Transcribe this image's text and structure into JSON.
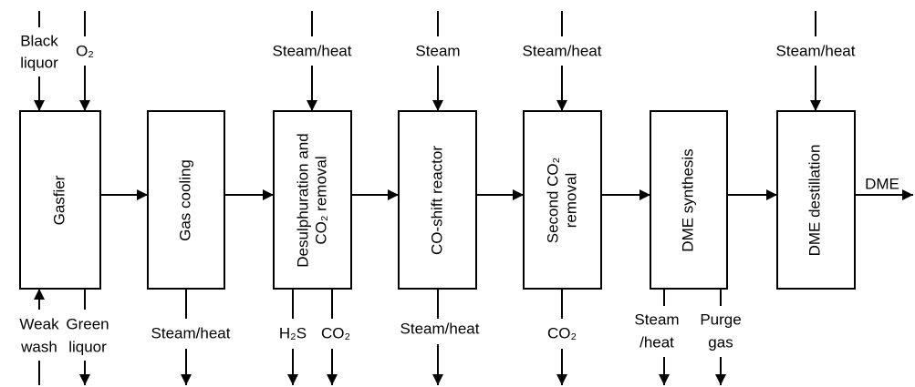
{
  "nodes": [
    {
      "label": [
        "Gasfier"
      ]
    },
    {
      "label": [
        "Gas cooling"
      ]
    },
    {
      "label": [
        "Desulphuration and",
        "CO₂ removal"
      ]
    },
    {
      "label": [
        "CO-shift reactor"
      ]
    },
    {
      "label": [
        "Second CO₂",
        "removal"
      ]
    },
    {
      "label": [
        "DME synthesis"
      ]
    },
    {
      "label": [
        "DME destillation"
      ]
    }
  ],
  "inputs": [
    {
      "label": [
        "Black",
        "liquor"
      ]
    },
    {
      "label": [
        "O₂"
      ]
    },
    {
      "label": [
        "Steam/heat"
      ]
    },
    {
      "label": [
        "Steam"
      ]
    },
    {
      "label": [
        "Steam/heat"
      ]
    },
    {
      "label": [
        "Steam/heat"
      ]
    },
    {
      "label": [
        "Weak",
        "wash"
      ]
    }
  ],
  "outputs": [
    {
      "label": [
        "Green",
        "liquor"
      ]
    },
    {
      "label": [
        "Steam/heat"
      ]
    },
    {
      "label": [
        "H₂S"
      ]
    },
    {
      "label": [
        "CO₂"
      ]
    },
    {
      "label": [
        "Steam/heat"
      ]
    },
    {
      "label": [
        "CO₂"
      ]
    },
    {
      "label": [
        "Steam",
        "/heat"
      ]
    },
    {
      "label": [
        "Purge",
        "gas"
      ]
    },
    {
      "label": [
        "DME"
      ]
    }
  ]
}
